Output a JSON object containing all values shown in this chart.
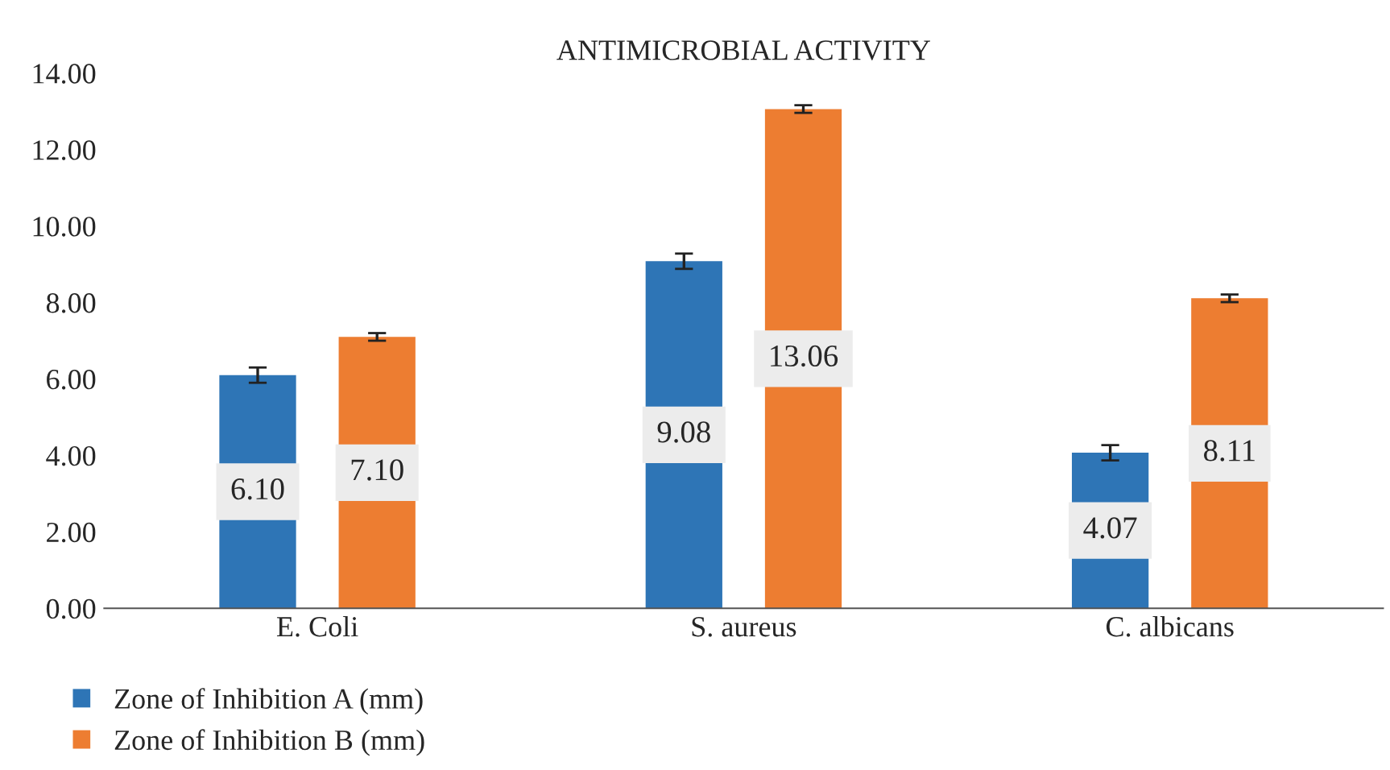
{
  "chart_data": {
    "type": "bar",
    "title": "ANTIMICROBIAL ACTIVITY",
    "categories": [
      "E. Coli",
      "S. aureus",
      "C. albicans"
    ],
    "series": [
      {
        "name": "Zone of Inhibition A (mm)",
        "color": "#2e75b6",
        "values": [
          6.1,
          9.08,
          4.07
        ],
        "errors": [
          0.2,
          0.2,
          0.2
        ],
        "value_labels": [
          "6.10",
          "9.08",
          "4.07"
        ]
      },
      {
        "name": "Zone of Inhibition B (mm)",
        "color": "#ed7d31",
        "values": [
          7.1,
          13.06,
          8.11
        ],
        "errors": [
          0.1,
          0.1,
          0.1
        ],
        "value_labels": [
          "7.10",
          "13.06",
          "8.11"
        ]
      }
    ],
    "ylim": [
      0,
      14
    ],
    "yticks": [
      {
        "value": 0,
        "label": "0.00"
      },
      {
        "value": 2,
        "label": "2.00"
      },
      {
        "value": 4,
        "label": "4.00"
      },
      {
        "value": 6,
        "label": "6.00"
      },
      {
        "value": 8,
        "label": "8.00"
      },
      {
        "value": 10,
        "label": "10.00"
      },
      {
        "value": 12,
        "label": "12.00"
      },
      {
        "value": 14,
        "label": "14.00"
      }
    ],
    "grid": false,
    "legend": "bottom left"
  }
}
